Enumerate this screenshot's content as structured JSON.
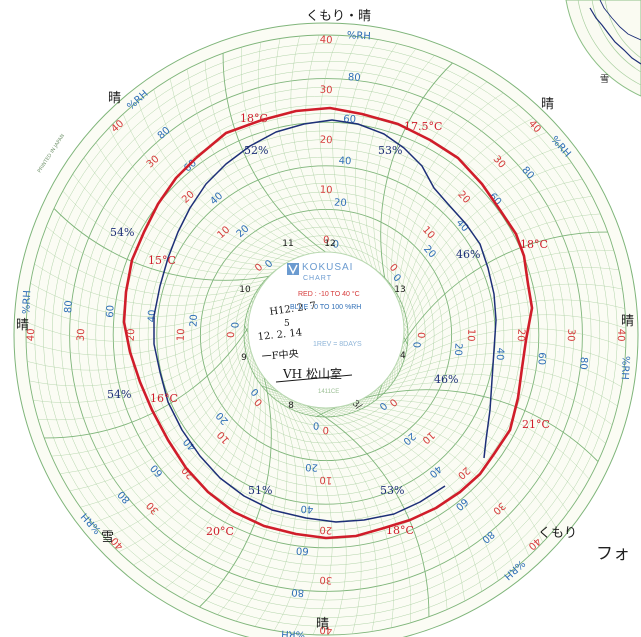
{
  "colors": {
    "paper": "#fbfcf4",
    "grid": "#a9cfa0",
    "grid_dark": "#7fb57a",
    "red_scale": "#d63b3b",
    "blue_scale": "#2f6fb7",
    "red_trace": "#d01d2a",
    "blue_trace": "#1d2f78",
    "ink": "#1a1a1a"
  },
  "center": {
    "brand": "KOKUSAI",
    "brand_sub": "CHART",
    "red_range": "RED : -10 TO 40 °C",
    "blue_range": "BLUE : 0 TO 100 %RH",
    "rev": "1REV = 8DAYS",
    "code": "1411CE"
  },
  "handwriting": {
    "date_start": "H12. 2. 7",
    "tilde": "5",
    "date_end": "12. 2. 14",
    "floor": "一F中央",
    "place": "VH 松山室",
    "short": "3/"
  },
  "printed": {
    "maker": "PRINTED IN JAPAN"
  },
  "caption": "フォ",
  "weather_marks": [
    {
      "text": "くもり・晴",
      "angle": 0
    },
    {
      "text": "晴",
      "angle": 45
    },
    {
      "text": "晴",
      "angle": 90
    },
    {
      "text": "くもり",
      "angle": 135
    },
    {
      "text": "晴",
      "angle": 180
    },
    {
      "text": "雪",
      "angle": 225
    },
    {
      "text": "晴",
      "angle": 270
    },
    {
      "text": "晴",
      "angle": 315
    }
  ],
  "red_scale_labels": [
    "40",
    "30",
    "20",
    "10",
    "0"
  ],
  "blue_scale_labels": [
    "%RH",
    "80",
    "60",
    "40",
    "20",
    "0"
  ],
  "day_numbers": [
    "12",
    "13",
    "14",
    "8",
    "9",
    "10",
    "11"
  ],
  "annotations": [
    {
      "text": "18°C",
      "color": "red"
    },
    {
      "text": "17.5°C",
      "color": "red"
    },
    {
      "text": "18°C",
      "color": "red"
    },
    {
      "text": "21°C",
      "color": "red"
    },
    {
      "text": "18°C",
      "color": "red"
    },
    {
      "text": "20°C",
      "color": "red"
    },
    {
      "text": "16°C",
      "color": "red"
    },
    {
      "text": "15°C",
      "color": "red"
    },
    {
      "text": "52%",
      "color": "blue"
    },
    {
      "text": "53%",
      "color": "blue"
    },
    {
      "text": "46%",
      "color": "blue"
    },
    {
      "text": "46%",
      "color": "blue"
    },
    {
      "text": "54%",
      "color": "blue"
    },
    {
      "text": "51%",
      "color": "blue"
    },
    {
      "text": "53%",
      "color": "blue"
    },
    {
      "text": "54%",
      "color": "blue"
    }
  ]
}
